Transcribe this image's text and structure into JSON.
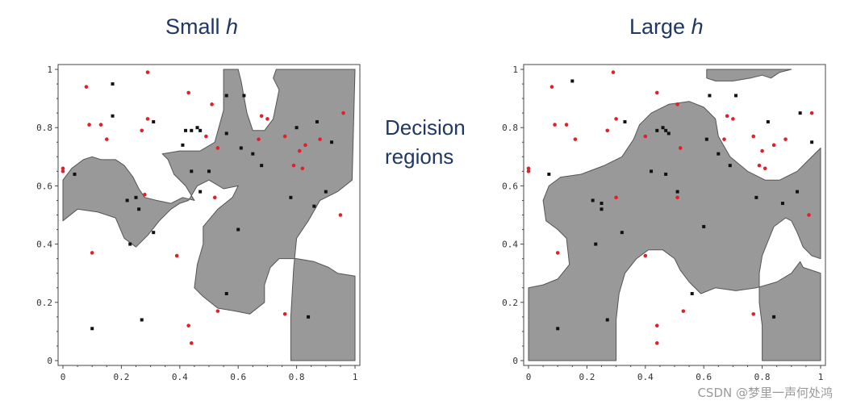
{
  "titles": {
    "small_prefix": "Small ",
    "small_var": "h",
    "large_prefix": "Large ",
    "large_var": "h"
  },
  "center_label": {
    "line1": "Decision",
    "line2": "regions"
  },
  "watermark": "CSDN @梦里一声何处鸿",
  "colors": {
    "region": "#999999",
    "region_edge": "#555555",
    "class_black": "#111111",
    "class_red": "#e0202a",
    "title": "#1f3864"
  },
  "chart_data": [
    {
      "type": "scatter",
      "panel": "small_h",
      "title": "Small h",
      "xlim": [
        0,
        1
      ],
      "ylim": [
        0,
        1
      ],
      "xticks": [
        "0",
        "0.2",
        "0.4",
        "0.6",
        "0.8",
        "1"
      ],
      "yticks": [
        "0",
        "0.2",
        "0.4",
        "0.6",
        "0.8",
        "1"
      ],
      "grid": false,
      "shaded_region": [
        [
          0.0,
          0.48
        ],
        [
          0.05,
          0.52
        ],
        [
          0.12,
          0.51
        ],
        [
          0.18,
          0.49
        ],
        [
          0.21,
          0.42
        ],
        [
          0.25,
          0.39
        ],
        [
          0.29,
          0.43
        ],
        [
          0.33,
          0.48
        ],
        [
          0.37,
          0.52
        ],
        [
          0.4,
          0.54
        ],
        [
          0.43,
          0.55
        ],
        [
          0.46,
          0.6
        ],
        [
          0.5,
          0.62
        ],
        [
          0.55,
          0.59
        ],
        [
          0.6,
          0.6
        ],
        [
          0.58,
          0.56
        ],
        [
          0.53,
          0.52
        ],
        [
          0.48,
          0.46
        ],
        [
          0.48,
          0.4
        ],
        [
          0.46,
          0.33
        ],
        [
          0.45,
          0.25
        ],
        [
          0.48,
          0.22
        ],
        [
          0.53,
          0.18
        ],
        [
          0.59,
          0.17
        ],
        [
          0.64,
          0.16
        ],
        [
          0.69,
          0.2
        ],
        [
          0.69,
          0.26
        ],
        [
          0.71,
          0.32
        ],
        [
          0.74,
          0.35
        ],
        [
          0.8,
          0.35
        ],
        [
          0.86,
          0.34
        ],
        [
          0.91,
          0.32
        ],
        [
          0.94,
          0.3
        ],
        [
          1.0,
          0.29
        ],
        [
          1.0,
          0.0
        ],
        [
          0.78,
          0.0
        ],
        [
          0.78,
          0.15
        ],
        [
          0.79,
          0.32
        ],
        [
          0.8,
          0.42
        ],
        [
          0.84,
          0.48
        ],
        [
          0.88,
          0.55
        ],
        [
          0.94,
          0.58
        ],
        [
          0.99,
          0.62
        ],
        [
          1.0,
          1.0
        ],
        [
          0.73,
          1.0
        ],
        [
          0.72,
          0.97
        ],
        [
          0.74,
          0.93
        ],
        [
          0.72,
          0.83
        ],
        [
          0.69,
          0.79
        ],
        [
          0.65,
          0.79
        ],
        [
          0.63,
          0.85
        ],
        [
          0.61,
          0.96
        ],
        [
          0.6,
          1.0
        ],
        [
          0.55,
          1.0
        ],
        [
          0.55,
          0.86
        ],
        [
          0.52,
          0.75
        ],
        [
          0.47,
          0.72
        ],
        [
          0.4,
          0.72
        ],
        [
          0.34,
          0.71
        ],
        [
          0.36,
          0.69
        ],
        [
          0.38,
          0.64
        ],
        [
          0.42,
          0.6
        ],
        [
          0.45,
          0.55
        ],
        [
          0.41,
          0.56
        ],
        [
          0.37,
          0.54
        ],
        [
          0.32,
          0.55
        ],
        [
          0.28,
          0.56
        ],
        [
          0.26,
          0.59
        ],
        [
          0.24,
          0.63
        ],
        [
          0.21,
          0.67
        ],
        [
          0.18,
          0.69
        ],
        [
          0.13,
          0.69
        ],
        [
          0.1,
          0.7
        ],
        [
          0.07,
          0.69
        ],
        [
          0.03,
          0.66
        ],
        [
          0.0,
          0.62
        ]
      ],
      "points_black": [
        [
          0.17,
          0.95
        ],
        [
          0.17,
          0.84
        ],
        [
          0.31,
          0.82
        ],
        [
          0.42,
          0.79
        ],
        [
          0.46,
          0.8
        ],
        [
          0.47,
          0.79
        ],
        [
          0.41,
          0.74
        ],
        [
          0.44,
          0.65
        ],
        [
          0.5,
          0.65
        ],
        [
          0.56,
          0.78
        ],
        [
          0.61,
          0.73
        ],
        [
          0.65,
          0.71
        ],
        [
          0.68,
          0.67
        ],
        [
          0.8,
          0.8
        ],
        [
          0.87,
          0.82
        ],
        [
          0.92,
          0.75
        ],
        [
          0.04,
          0.64
        ],
        [
          0.22,
          0.55
        ],
        [
          0.26,
          0.52
        ],
        [
          0.31,
          0.44
        ],
        [
          0.23,
          0.4
        ],
        [
          0.25,
          0.56
        ],
        [
          0.6,
          0.45
        ],
        [
          0.47,
          0.58
        ],
        [
          0.78,
          0.56
        ],
        [
          0.86,
          0.53
        ],
        [
          0.9,
          0.58
        ],
        [
          0.56,
          0.23
        ],
        [
          0.84,
          0.15
        ],
        [
          0.1,
          0.11
        ],
        [
          0.27,
          0.14
        ],
        [
          0.62,
          0.91
        ],
        [
          0.56,
          0.91
        ],
        [
          0.44,
          0.79
        ]
      ],
      "points_red": [
        [
          0.08,
          0.94
        ],
        [
          0.29,
          0.99
        ],
        [
          0.43,
          0.92
        ],
        [
          0.51,
          0.88
        ],
        [
          0.09,
          0.81
        ],
        [
          0.13,
          0.81
        ],
        [
          0.15,
          0.76
        ],
        [
          0.27,
          0.79
        ],
        [
          0.29,
          0.83
        ],
        [
          0.49,
          0.77
        ],
        [
          0.53,
          0.73
        ],
        [
          0.67,
          0.76
        ],
        [
          0.7,
          0.83
        ],
        [
          0.76,
          0.77
        ],
        [
          0.81,
          0.72
        ],
        [
          0.83,
          0.74
        ],
        [
          0.88,
          0.76
        ],
        [
          0.96,
          0.85
        ],
        [
          0.79,
          0.67
        ],
        [
          0.82,
          0.66
        ],
        [
          0.0,
          0.66
        ],
        [
          0.0,
          0.65
        ],
        [
          0.28,
          0.57
        ],
        [
          0.52,
          0.56
        ],
        [
          0.95,
          0.5
        ],
        [
          0.1,
          0.37
        ],
        [
          0.39,
          0.36
        ],
        [
          0.76,
          0.16
        ],
        [
          0.53,
          0.17
        ],
        [
          0.43,
          0.12
        ],
        [
          0.44,
          0.06
        ],
        [
          0.68,
          0.84
        ]
      ]
    },
    {
      "type": "scatter",
      "panel": "large_h",
      "title": "Large h",
      "xlim": [
        0,
        1
      ],
      "ylim": [
        0,
        1
      ],
      "xticks": [
        "0",
        "0.2",
        "0.4",
        "0.6",
        "0.8",
        "1"
      ],
      "yticks": [
        "0",
        "0.2",
        "0.4",
        "0.6",
        "0.8",
        "1"
      ],
      "grid": false,
      "shaded_region": [
        [
          0.0,
          0.25
        ],
        [
          0.05,
          0.26
        ],
        [
          0.1,
          0.28
        ],
        [
          0.14,
          0.33
        ],
        [
          0.13,
          0.42
        ],
        [
          0.1,
          0.45
        ],
        [
          0.06,
          0.48
        ],
        [
          0.05,
          0.55
        ],
        [
          0.07,
          0.6
        ],
        [
          0.11,
          0.63
        ],
        [
          0.18,
          0.64
        ],
        [
          0.26,
          0.67
        ],
        [
          0.32,
          0.7
        ],
        [
          0.36,
          0.76
        ],
        [
          0.38,
          0.81
        ],
        [
          0.42,
          0.85
        ],
        [
          0.48,
          0.88
        ],
        [
          0.55,
          0.89
        ],
        [
          0.6,
          0.87
        ],
        [
          0.64,
          0.83
        ],
        [
          0.65,
          0.77
        ],
        [
          0.69,
          0.7
        ],
        [
          0.75,
          0.65
        ],
        [
          0.81,
          0.62
        ],
        [
          0.86,
          0.62
        ],
        [
          0.92,
          0.65
        ],
        [
          0.96,
          0.69
        ],
        [
          0.99,
          0.72
        ],
        [
          1.0,
          0.73
        ],
        [
          1.0,
          0.35
        ],
        [
          0.97,
          0.36
        ],
        [
          0.94,
          0.39
        ],
        [
          0.92,
          0.44
        ],
        [
          0.9,
          0.48
        ],
        [
          0.88,
          0.49
        ],
        [
          0.84,
          0.46
        ],
        [
          0.82,
          0.41
        ],
        [
          0.8,
          0.36
        ],
        [
          0.79,
          0.3
        ],
        [
          0.79,
          0.2
        ],
        [
          0.8,
          0.12
        ],
        [
          0.8,
          0.0
        ],
        [
          1.0,
          0.0
        ],
        [
          1.0,
          0.3
        ],
        [
          0.94,
          0.32
        ],
        [
          0.93,
          0.34
        ],
        [
          0.9,
          0.3
        ],
        [
          0.85,
          0.27
        ],
        [
          0.78,
          0.25
        ],
        [
          0.71,
          0.24
        ],
        [
          0.64,
          0.25
        ],
        [
          0.59,
          0.23
        ],
        [
          0.55,
          0.27
        ],
        [
          0.52,
          0.31
        ],
        [
          0.5,
          0.35
        ],
        [
          0.46,
          0.38
        ],
        [
          0.41,
          0.38
        ],
        [
          0.37,
          0.35
        ],
        [
          0.33,
          0.3
        ],
        [
          0.31,
          0.23
        ],
        [
          0.3,
          0.14
        ],
        [
          0.3,
          0.0
        ],
        [
          0.0,
          0.0
        ]
      ],
      "shaded_region_2": [
        [
          0.61,
          1.0
        ],
        [
          0.61,
          0.97
        ],
        [
          0.64,
          0.96
        ],
        [
          0.7,
          0.96
        ],
        [
          0.76,
          0.97
        ],
        [
          0.8,
          0.98
        ],
        [
          0.83,
          0.97
        ],
        [
          0.86,
          0.99
        ],
        [
          0.9,
          1.0
        ]
      ],
      "points_black": [
        [
          0.15,
          0.96
        ],
        [
          0.33,
          0.82
        ],
        [
          0.44,
          0.79
        ],
        [
          0.46,
          0.8
        ],
        [
          0.47,
          0.79
        ],
        [
          0.48,
          0.78
        ],
        [
          0.61,
          0.76
        ],
        [
          0.65,
          0.71
        ],
        [
          0.69,
          0.67
        ],
        [
          0.71,
          0.91
        ],
        [
          0.62,
          0.91
        ],
        [
          0.82,
          0.82
        ],
        [
          0.93,
          0.85
        ],
        [
          0.97,
          0.75
        ],
        [
          0.07,
          0.64
        ],
        [
          0.42,
          0.65
        ],
        [
          0.47,
          0.64
        ],
        [
          0.22,
          0.55
        ],
        [
          0.25,
          0.54
        ],
        [
          0.25,
          0.52
        ],
        [
          0.32,
          0.44
        ],
        [
          0.23,
          0.4
        ],
        [
          0.51,
          0.58
        ],
        [
          0.6,
          0.46
        ],
        [
          0.78,
          0.56
        ],
        [
          0.87,
          0.54
        ],
        [
          0.92,
          0.58
        ],
        [
          0.56,
          0.23
        ],
        [
          0.84,
          0.15
        ],
        [
          0.1,
          0.11
        ],
        [
          0.27,
          0.14
        ]
      ],
      "points_red": [
        [
          0.08,
          0.94
        ],
        [
          0.29,
          0.99
        ],
        [
          0.44,
          0.92
        ],
        [
          0.51,
          0.88
        ],
        [
          0.09,
          0.81
        ],
        [
          0.13,
          0.81
        ],
        [
          0.16,
          0.76
        ],
        [
          0.27,
          0.79
        ],
        [
          0.3,
          0.83
        ],
        [
          0.4,
          0.77
        ],
        [
          0.52,
          0.73
        ],
        [
          0.67,
          0.76
        ],
        [
          0.7,
          0.83
        ],
        [
          0.77,
          0.77
        ],
        [
          0.8,
          0.72
        ],
        [
          0.84,
          0.74
        ],
        [
          0.88,
          0.76
        ],
        [
          0.97,
          0.85
        ],
        [
          0.79,
          0.67
        ],
        [
          0.81,
          0.66
        ],
        [
          0.0,
          0.66
        ],
        [
          0.0,
          0.65
        ],
        [
          0.3,
          0.56
        ],
        [
          0.51,
          0.56
        ],
        [
          0.96,
          0.5
        ],
        [
          0.1,
          0.37
        ],
        [
          0.4,
          0.36
        ],
        [
          0.77,
          0.16
        ],
        [
          0.53,
          0.17
        ],
        [
          0.44,
          0.12
        ],
        [
          0.44,
          0.06
        ],
        [
          0.68,
          0.84
        ]
      ]
    }
  ]
}
